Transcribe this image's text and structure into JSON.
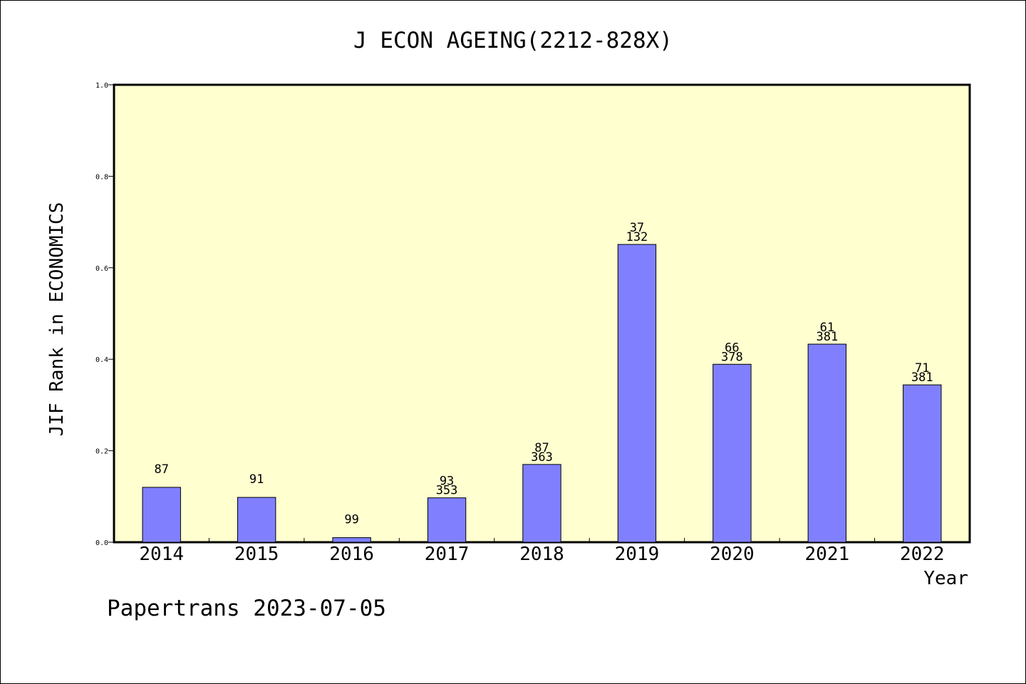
{
  "chart_data": {
    "type": "bar",
    "title": "J ECON AGEING(2212-828X)",
    "xlabel": "Year",
    "ylabel": "JIF Rank in ECONOMICS",
    "ylim": [
      0,
      1.0
    ],
    "yticks": [
      "0.0",
      "0.2",
      "0.4",
      "0.6",
      "0.8",
      "1.0"
    ],
    "categories": [
      "2014",
      "2015",
      "2016",
      "2017",
      "2018",
      "2019",
      "2020",
      "2021",
      "2022"
    ],
    "values": [
      0.12,
      0.098,
      0.01,
      0.097,
      0.17,
      0.651,
      0.389,
      0.433,
      0.344
    ],
    "rank_labels": [
      "87",
      "91",
      "99",
      "93",
      "87",
      "37",
      "66",
      "61",
      "71"
    ],
    "total_labels": [
      "",
      "",
      "",
      "353",
      "363",
      "132",
      "378",
      "381",
      "381"
    ],
    "grid": false,
    "colors": {
      "plot_background": "#ffffd0",
      "bar": "#8080ff"
    }
  },
  "footer": {
    "watermark": "Papertrans 2023-07-05"
  }
}
